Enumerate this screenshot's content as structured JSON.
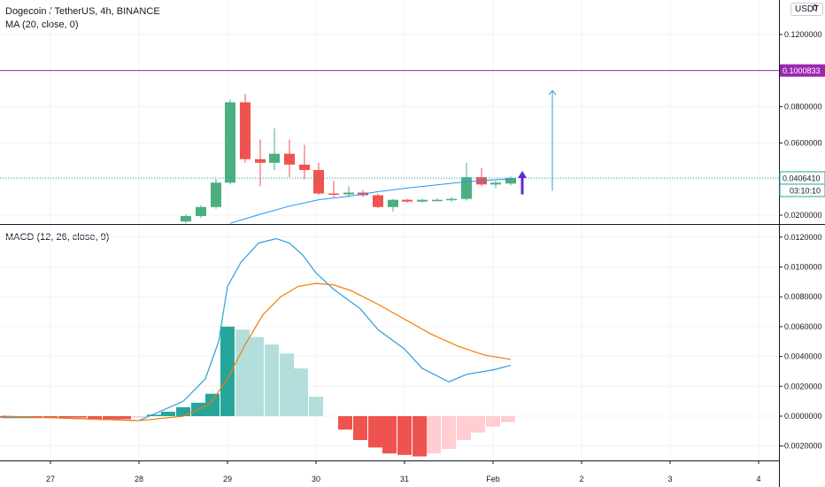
{
  "header": {
    "title": "Dogecoin / TetherUS, 4h, BINANCE",
    "ma_label": "MA (20, close, 0)",
    "macd_label": "MACD (12, 26, close, 9)",
    "currency_badge": "USDT",
    "edge_tag": "0"
  },
  "colors": {
    "up": "#4caf82",
    "down": "#ef5350",
    "ma": "#2196f3",
    "macd": "#2d9fd9",
    "signal": "#f57c00",
    "resistance": "#9c27b0",
    "hist_up_strong": "#26a69a",
    "hist_up_weak": "#b2dfdb",
    "hist_down_strong": "#ef5350",
    "hist_down_weak": "#ffcdd2",
    "arrow": "#5b2bd6"
  },
  "chart_data": [
    {
      "type": "candlestick",
      "title": "Dogecoin / TetherUS, 4h, BINANCE",
      "ylim": [
        0.0155,
        0.1305
      ],
      "xlim": [
        26.45,
        4.3
      ],
      "x_axis_ticks": [
        "27",
        "28",
        "29",
        "30",
        "31",
        "Feb",
        "2",
        "3",
        "4"
      ],
      "y_axis_ticks": [
        "0.1200000",
        "0.0800000",
        "0.0600000",
        "0.0200000"
      ],
      "price_tags": {
        "resistance": "0.1000833",
        "last_price": "0.0406410",
        "countdown": "03:10:10"
      },
      "candles": [
        {
          "x": 28.53,
          "o": 0.0165,
          "h": 0.0205,
          "l": 0.0155,
          "c": 0.0195
        },
        {
          "x": 28.7,
          "o": 0.0195,
          "h": 0.0255,
          "l": 0.0185,
          "c": 0.0245
        },
        {
          "x": 28.87,
          "o": 0.0245,
          "h": 0.04,
          "l": 0.0235,
          "c": 0.038
        },
        {
          "x": 29.03,
          "o": 0.038,
          "h": 0.084,
          "l": 0.037,
          "c": 0.0825
        },
        {
          "x": 29.2,
          "o": 0.0825,
          "h": 0.087,
          "l": 0.049,
          "c": 0.051
        },
        {
          "x": 29.37,
          "o": 0.051,
          "h": 0.062,
          "l": 0.036,
          "c": 0.049
        },
        {
          "x": 29.53,
          "o": 0.049,
          "h": 0.068,
          "l": 0.045,
          "c": 0.054
        },
        {
          "x": 29.7,
          "o": 0.054,
          "h": 0.062,
          "l": 0.041,
          "c": 0.048
        },
        {
          "x": 29.87,
          "o": 0.048,
          "h": 0.059,
          "l": 0.04,
          "c": 0.045
        },
        {
          "x": 30.03,
          "o": 0.045,
          "h": 0.049,
          "l": 0.031,
          "c": 0.032
        },
        {
          "x": 30.2,
          "o": 0.032,
          "h": 0.039,
          "l": 0.03,
          "c": 0.0315
        },
        {
          "x": 30.37,
          "o": 0.0315,
          "h": 0.036,
          "l": 0.03,
          "c": 0.0325
        },
        {
          "x": 30.53,
          "o": 0.0325,
          "h": 0.034,
          "l": 0.03,
          "c": 0.031
        },
        {
          "x": 30.7,
          "o": 0.031,
          "h": 0.032,
          "l": 0.024,
          "c": 0.0245
        },
        {
          "x": 30.87,
          "o": 0.0245,
          "h": 0.029,
          "l": 0.022,
          "c": 0.0285
        },
        {
          "x": 31.03,
          "o": 0.0285,
          "h": 0.029,
          "l": 0.027,
          "c": 0.0275
        },
        {
          "x": 31.2,
          "o": 0.0275,
          "h": 0.029,
          "l": 0.027,
          "c": 0.0285
        },
        {
          "x": 31.37,
          "o": 0.0285,
          "h": 0.0295,
          "l": 0.0275,
          "c": 0.0285
        },
        {
          "x": 31.53,
          "o": 0.0285,
          "h": 0.03,
          "l": 0.0275,
          "c": 0.029
        },
        {
          "x": 31.7,
          "o": 0.029,
          "h": 0.049,
          "l": 0.028,
          "c": 0.041
        },
        {
          "x": 31.87,
          "o": 0.041,
          "h": 0.046,
          "l": 0.036,
          "c": 0.037
        },
        {
          "x": 32.03,
          "o": 0.037,
          "h": 0.039,
          "l": 0.035,
          "c": 0.038
        },
        {
          "x": 32.2,
          "o": 0.0375,
          "h": 0.0415,
          "l": 0.0365,
          "c": 0.0406
        }
      ],
      "ma_series": {
        "name": "MA (20, close, 0)",
        "x": [
          29.03,
          29.37,
          29.7,
          30.03,
          30.37,
          30.7,
          31.03,
          31.37,
          31.7,
          32.03,
          32.2
        ],
        "y": [
          0.0155,
          0.0205,
          0.025,
          0.0285,
          0.0305,
          0.033,
          0.035,
          0.0368,
          0.0385,
          0.0396,
          0.04
        ]
      },
      "current_price_line": 0.0406,
      "resistance_line": 0.1000833,
      "projection_arrow": {
        "x": 32.67,
        "from": 0.0335,
        "to": 0.089
      },
      "up_arrow": {
        "x": 32.33,
        "from": 0.0315,
        "to": 0.0445
      }
    },
    {
      "type": "bar",
      "title": "MACD (12, 26, close, 9)",
      "ylim": [
        -0.0028,
        0.0124
      ],
      "y_axis_ticks": [
        "0.0120000",
        "0.0100000",
        "0.0080000",
        "0.0060000",
        "0.0040000",
        "0.0020000",
        "0.0000000",
        "-0.0020000"
      ],
      "histogram": {
        "x": [
          26.5,
          26.67,
          26.83,
          27.0,
          27.17,
          27.33,
          27.5,
          27.67,
          27.83,
          28.0,
          28.17,
          28.33,
          28.5,
          28.67,
          28.83,
          29.0,
          29.17,
          29.33,
          29.5,
          29.67,
          29.83,
          30.0,
          30.17,
          30.33,
          30.5,
          30.67,
          30.83,
          31.0,
          31.17,
          31.33,
          31.5,
          31.67,
          31.83,
          32.0,
          32.17
        ],
        "values": [
          -0.0001,
          -0.0001,
          -0.0001,
          -0.0001,
          -0.0001,
          -0.0001,
          -0.0002,
          -0.0002,
          -0.0002,
          -0.0001,
          0.0001,
          0.0003,
          0.0006,
          0.0009,
          0.0015,
          0.006,
          0.0058,
          0.0053,
          0.0048,
          0.0042,
          0.0032,
          0.0013,
          0.0,
          -0.0009,
          -0.0016,
          -0.0021,
          -0.0025,
          -0.0026,
          -0.0027,
          -0.0025,
          -0.0022,
          -0.0016,
          -0.0011,
          -0.0007,
          -0.0004
        ]
      },
      "series": [
        {
          "name": "MACD",
          "x": [
            26.45,
            27.0,
            27.5,
            28.0,
            28.5,
            28.75,
            28.9,
            29.0,
            29.15,
            29.35,
            29.55,
            29.7,
            29.85,
            30.0,
            30.2,
            30.5,
            30.7,
            31.0,
            31.2,
            31.5,
            31.7,
            32.0,
            32.2
          ],
          "y": [
            -0.0001,
            -0.0001,
            -0.0002,
            -0.0003,
            0.001,
            0.0025,
            0.005,
            0.0087,
            0.0103,
            0.0116,
            0.0119,
            0.0116,
            0.0108,
            0.0096,
            0.0085,
            0.0072,
            0.0058,
            0.0045,
            0.0032,
            0.0023,
            0.0028,
            0.0031,
            0.0034
          ]
        },
        {
          "name": "Signal",
          "x": [
            26.45,
            27.0,
            27.5,
            28.0,
            28.5,
            28.8,
            29.0,
            29.2,
            29.4,
            29.6,
            29.8,
            30.0,
            30.2,
            30.4,
            30.7,
            31.0,
            31.3,
            31.6,
            31.9,
            32.2
          ],
          "y": [
            0.0,
            -0.0001,
            -0.0002,
            -0.0003,
            0.0,
            0.0008,
            0.0025,
            0.0048,
            0.0068,
            0.008,
            0.0087,
            0.0089,
            0.0088,
            0.0084,
            0.0075,
            0.0065,
            0.0055,
            0.0047,
            0.0041,
            0.0038
          ]
        }
      ]
    }
  ]
}
